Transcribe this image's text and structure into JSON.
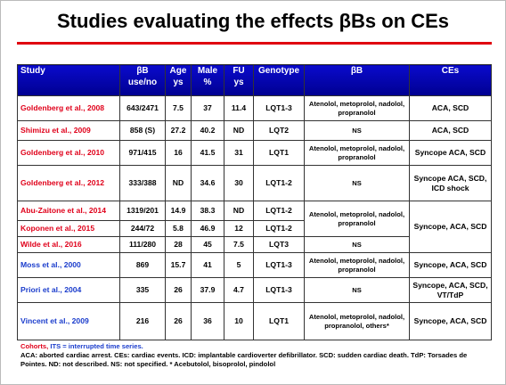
{
  "header": {
    "title": "Studies evaluating the effects βBs on CEs"
  },
  "table": {
    "columns": [
      "Study",
      "βB use/no",
      "Age ys",
      "Male %",
      "FU ys",
      "Genotype",
      "βB",
      "CEs"
    ],
    "rows": [
      {
        "study": "Goldenberg et al., 2008",
        "use": "643/2471",
        "age": "7.5",
        "male": "37",
        "fu": "11.4",
        "genotype": "LQT1-3",
        "beta": "Atenolol, metoprolol, nadolol, propranolol",
        "ces": "ACA, SCD"
      },
      {
        "study": "Shimizu et al., 2009",
        "use": "858 (S)",
        "age": "27.2",
        "male": "40.2",
        "fu": "ND",
        "genotype": "LQT2",
        "beta": "NS",
        "ces": "ACA, SCD"
      },
      {
        "study": "Goldenberg et al., 2010",
        "use": "971/415",
        "age": "16",
        "male": "41.5",
        "fu": "31",
        "genotype": "LQT1",
        "beta": "Atenolol, metoprolol, nadolol, propranolol",
        "ces": "Syncope ACA, SCD"
      },
      {
        "study": "Goldenberg et al., 2012",
        "use": "333/388",
        "age": "ND",
        "male": "34.6",
        "fu": "30",
        "genotype": "LQT1-2",
        "beta": "NS",
        "ces": "Syncope ACA, SCD, ICD shock"
      },
      {
        "study": "Abu-Zaitone et al., 2014",
        "use": "1319/201",
        "age": "14.9",
        "male": "38.3",
        "fu": "ND",
        "genotype": "LQT1-2",
        "beta": "Atenolol, metoprolol, nadolol, propranolol",
        "ces": "Syncope, ACA, SCD"
      },
      {
        "study": "Koponen et al., 2015",
        "use": "244/72",
        "age": "5.8",
        "male": "46.9",
        "fu": "12",
        "genotype": "LQT1-2"
      },
      {
        "study": "Wilde et al., 2016",
        "use": "111/280",
        "age": "28",
        "male": "45",
        "fu": "7.5",
        "genotype": "LQT3",
        "beta": "NS"
      },
      {
        "study": "Moss et al., 2000",
        "use": "869",
        "age": "15.7",
        "male": "41",
        "fu": "5",
        "genotype": "LQT1-3",
        "beta": "Atenolol, metoprolol, nadolol, propranolol",
        "ces": "Syncope, ACA, SCD"
      },
      {
        "study": "Priori et al., 2004",
        "use": "335",
        "age": "26",
        "male": "37.9",
        "fu": "4.7",
        "genotype": "LQT1-3",
        "beta": "NS",
        "ces": "Syncope, ACA, SCD, VT/TdP"
      },
      {
        "study": "Vincent et al., 2009",
        "use": "216",
        "age": "26",
        "male": "36",
        "fu": "10",
        "genotype": "LQT1",
        "beta": "Atenolol, metoprolol, nadolol, propranolol, others*",
        "ces": "Syncope, ACA, SCD"
      }
    ]
  },
  "footnote": {
    "cohorts": "Cohorts,",
    "its": "ITS = interrupted time series.",
    "text": "ACA: aborted cardiac arrest. CEs: cardiac events. ICD: implantable cardioverter defibrillator. SCD: sudden cardiac death. TdP: Torsades de Pointes. ND: not described. NS: not specified. * Acebutolol, bisoprolol, pindolol"
  }
}
